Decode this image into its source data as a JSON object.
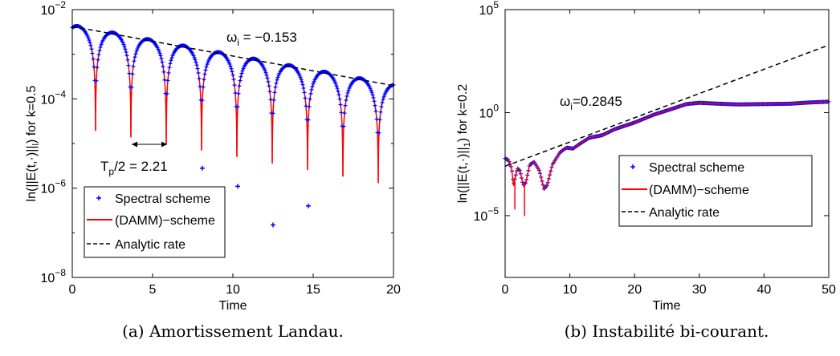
{
  "chart_data": [
    {
      "type": "line",
      "caption": "(a) Amortissement Landau.",
      "xlabel": "Time",
      "ylabel": "ln(||E(t,·)||",
      "ylabel_sub": "l",
      "ylabel_suffix": ") for k=0.5",
      "xlim": [
        0,
        20
      ],
      "ylim": [
        1e-08,
        0.01
      ],
      "yscale": "log",
      "xticks": [
        "0",
        "5",
        "10",
        "15",
        "20"
      ],
      "yticks": [
        {
          "base": "10",
          "exp": "−8",
          "value": 1e-08
        },
        {
          "base": "10",
          "exp": "−6",
          "value": 1e-06
        },
        {
          "base": "10",
          "exp": "−4",
          "value": 0.0001
        },
        {
          "base": "10",
          "exp": "−2",
          "value": 0.01
        }
      ],
      "legend": {
        "position": "bottom-left",
        "entries": [
          "Spectral scheme",
          "(DAMM)−scheme",
          "Analytic rate"
        ]
      },
      "series": [
        {
          "name": "Spectral scheme",
          "style": "plus markers",
          "color": "#0000ff"
        },
        {
          "name": "(DAMM)−scheme",
          "style": "solid line",
          "color": "#ff0000"
        },
        {
          "name": "Analytic rate",
          "style": "dashed line",
          "color": "#000000",
          "x": [
            0,
            20
          ],
          "y": [
            0.0042,
            0.000198
          ]
        }
      ],
      "decay_rate": -0.153,
      "half_period": 2.21,
      "initial_amplitude": 0.0045,
      "period_half": 2.2,
      "first_zero": 1.45,
      "spectral_outliers": [
        {
          "x": 8.1,
          "y": 2.8e-06
        },
        {
          "x": 10.3,
          "y": 1.1e-06
        },
        {
          "x": 12.5,
          "y": 1.5e-07
        },
        {
          "x": 14.7,
          "y": 4e-07
        }
      ],
      "annotations": [
        {
          "text_main": "ω",
          "text_sub": "i",
          "text_rest": " = −0.153"
        },
        {
          "text_main": "T",
          "text_sub": "p",
          "text_rest": "/2 = 2.21",
          "arrow_x": [
            3.7,
            5.9
          ]
        }
      ]
    },
    {
      "type": "line",
      "caption": "(b) Instabilité bi-courant.",
      "xlabel": "Time",
      "ylabel": "ln(||E(t,·)||",
      "ylabel_sub": "1",
      "ylabel_suffix": ") for k=0.2",
      "xlim": [
        0,
        50
      ],
      "ylim": [
        1e-08,
        100000.0
      ],
      "yscale": "log",
      "xticks": [
        "0",
        "10",
        "20",
        "30",
        "40",
        "50"
      ],
      "yticks": [
        {
          "base": "10",
          "exp": "−5",
          "value": 1e-05
        },
        {
          "base": "10",
          "exp": "0",
          "value": 1
        },
        {
          "base": "10",
          "exp": "5",
          "value": 100000.0
        }
      ],
      "legend": {
        "position": "right",
        "entries": [
          "Spectral scheme",
          "(DAMM)−scheme",
          "Analytic rate"
        ]
      },
      "series": [
        {
          "name": "Spectral scheme",
          "style": "plus markers",
          "color": "#0000ff"
        },
        {
          "name": "(DAMM)−scheme",
          "style": "solid line",
          "color": "#ff0000"
        },
        {
          "name": "Analytic rate",
          "style": "dashed line",
          "color": "#000000",
          "x": [
            0,
            50
          ],
          "y": [
            0.0025,
            1900.0
          ]
        }
      ],
      "growth_rate": 0.2845,
      "curve_points": [
        [
          0,
          0.006
        ],
        [
          0.5,
          0.005
        ],
        [
          1.0,
          0.002
        ],
        [
          1.3,
          0.0003
        ],
        [
          1.5,
          0.0006
        ],
        [
          1.9,
          0.002
        ],
        [
          2.3,
          0.0015
        ],
        [
          2.8,
          0.0003
        ],
        [
          3.2,
          0.0004
        ],
        [
          3.8,
          0.003
        ],
        [
          4.5,
          0.004
        ],
        [
          5.3,
          0.0015
        ],
        [
          6.0,
          0.0002
        ],
        [
          6.5,
          0.0003
        ],
        [
          7.3,
          0.003
        ],
        [
          8.5,
          0.012
        ],
        [
          9.5,
          0.02
        ],
        [
          10.5,
          0.018
        ],
        [
          11.5,
          0.03
        ],
        [
          13,
          0.06
        ],
        [
          15,
          0.08
        ],
        [
          17,
          0.16
        ],
        [
          20,
          0.33
        ],
        [
          23,
          0.8
        ],
        [
          26,
          1.6
        ],
        [
          28,
          2.6
        ],
        [
          30,
          3.0
        ],
        [
          33,
          2.7
        ],
        [
          36,
          2.5
        ],
        [
          40,
          2.6
        ],
        [
          44,
          2.7
        ],
        [
          47,
          3.1
        ],
        [
          50,
          3.4
        ]
      ],
      "minima": [
        {
          "x": 1.5,
          "y": 2e-05
        },
        {
          "x": 3.0,
          "y": 9.5e-06
        }
      ],
      "annotations": [
        {
          "text_main": "ω",
          "text_sub": "i",
          "text_rest": "=0.2845"
        }
      ]
    }
  ]
}
